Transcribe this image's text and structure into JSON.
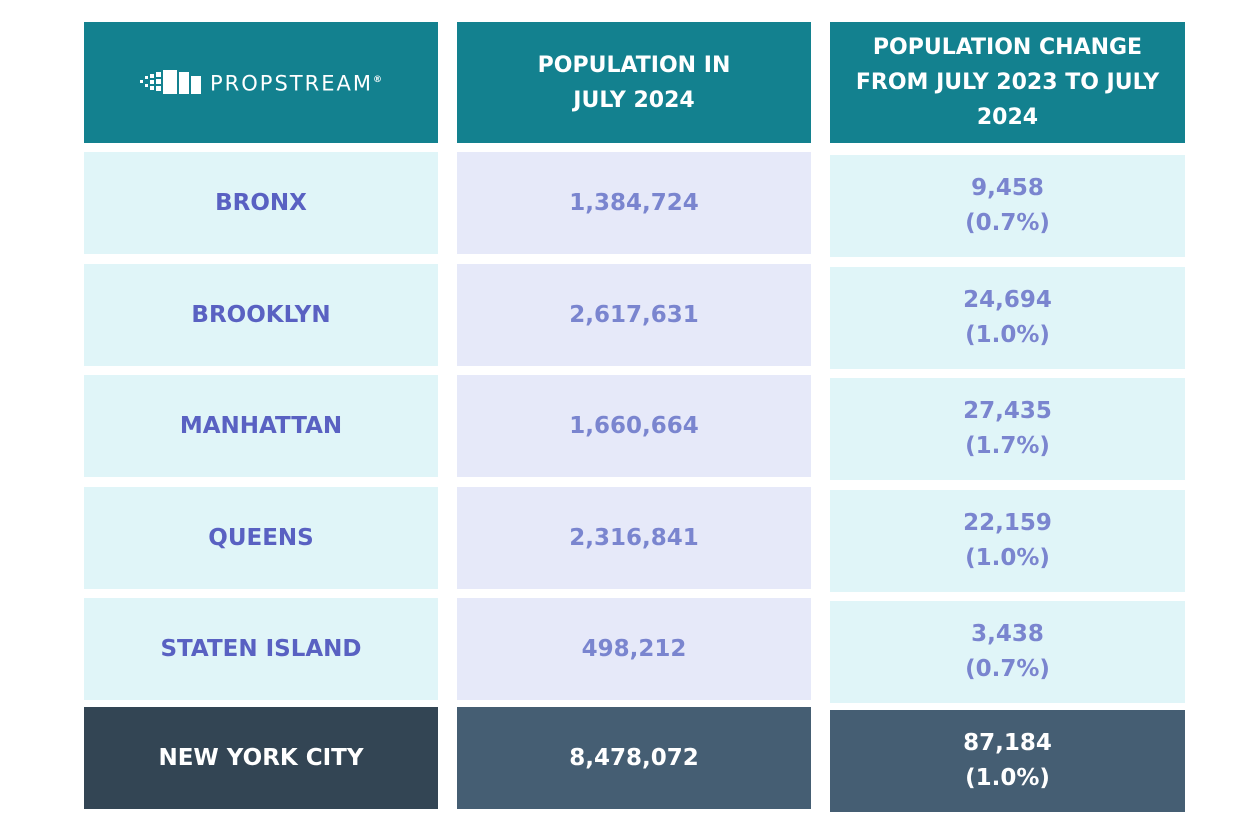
{
  "header": {
    "logo": {
      "name": "PROPSTREAM",
      "mark": "®"
    },
    "columns": [
      "POPULATION IN JULY 2024",
      "POPULATION CHANGE FROM JULY 2023 TO JULY 2024"
    ]
  },
  "rows": [
    {
      "name": "BRONX",
      "population": "1,384,724",
      "change": "9,458",
      "change_pct": "(0.7%)"
    },
    {
      "name": "BROOKLYN",
      "population": "2,617,631",
      "change": "24,694",
      "change_pct": "(1.0%)"
    },
    {
      "name": "MANHATTAN",
      "population": "1,660,664",
      "change": "27,435",
      "change_pct": "(1.7%)"
    },
    {
      "name": "QUEENS",
      "population": "2,316,841",
      "change": "22,159",
      "change_pct": "(1.0%)"
    },
    {
      "name": "STATEN ISLAND",
      "population": "498,212",
      "change": "3,438",
      "change_pct": "(0.7%)"
    }
  ],
  "total": {
    "name": "NEW YORK CITY",
    "population": "8,478,072",
    "change": "87,184",
    "change_pct": "(1.0%)"
  }
}
